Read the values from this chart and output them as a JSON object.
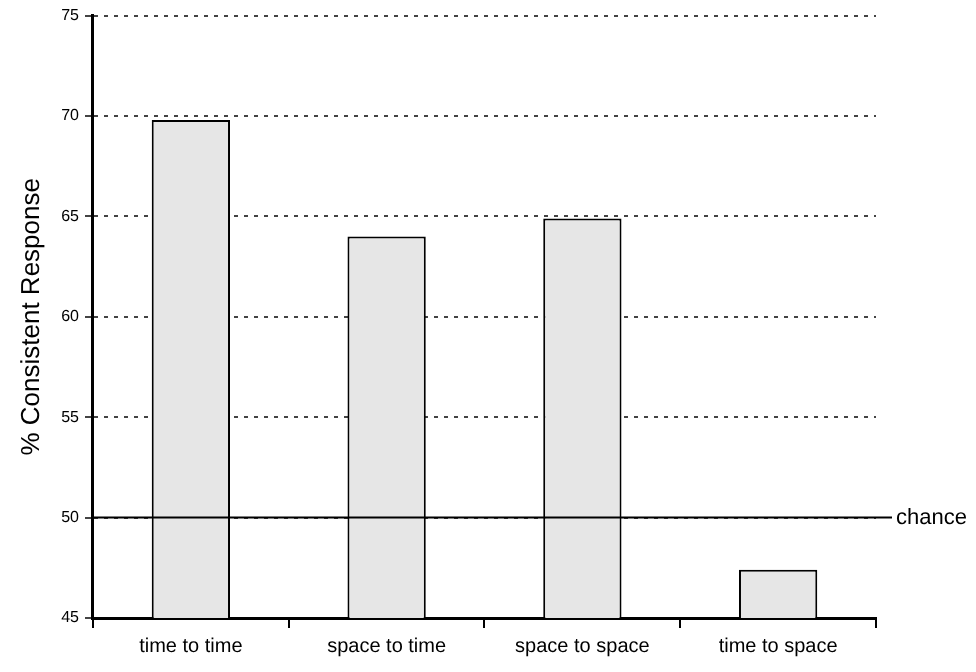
{
  "chart_data": {
    "type": "bar",
    "ylabel": "% Consistent Response",
    "categories": [
      "time to time",
      "space to time",
      "space to space",
      "time to space"
    ],
    "values": [
      69.8,
      64.0,
      64.9,
      47.4
    ],
    "color": "#e6e6e6",
    "ylim": [
      45,
      75
    ],
    "yticks": [
      45,
      50,
      55,
      60,
      65,
      70,
      75
    ],
    "grid": "y",
    "ref_lines": [
      {
        "axis": "y",
        "value": 50,
        "label": "chance",
        "color": "#000000",
        "line_style": "solid"
      }
    ]
  }
}
